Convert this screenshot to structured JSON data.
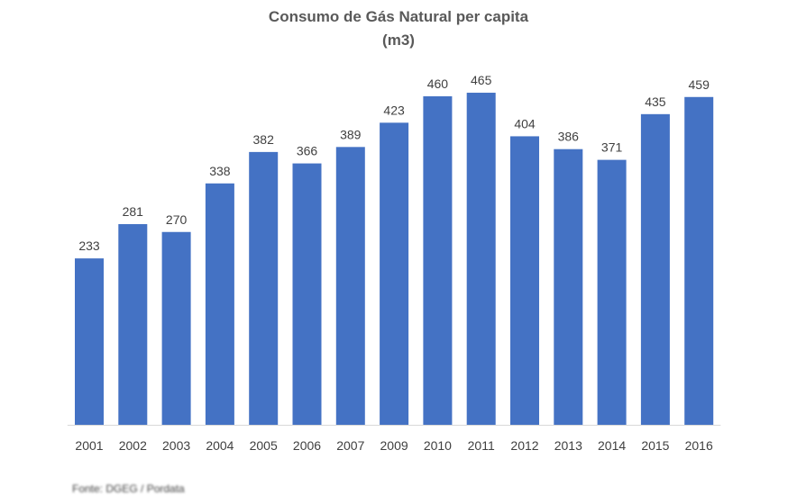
{
  "chart_data": {
    "type": "bar",
    "title_line1": "Consumo de Gás Natural per capita",
    "title_line2": "(m3)",
    "xlabel": "",
    "ylabel": "",
    "categories": [
      "2001",
      "2002",
      "2003",
      "2004",
      "2005",
      "2006",
      "2007",
      "2009",
      "2010",
      "2011",
      "2012",
      "2013",
      "2014",
      "2015",
      "2016"
    ],
    "values": [
      233,
      281,
      270,
      338,
      382,
      366,
      389,
      423,
      460,
      465,
      404,
      386,
      371,
      435,
      459
    ],
    "ylim": [
      0,
      500
    ],
    "grid": false,
    "bar_color": "#4472C4"
  },
  "footer": {
    "source": "Fonte: DGEG / Pordata"
  }
}
